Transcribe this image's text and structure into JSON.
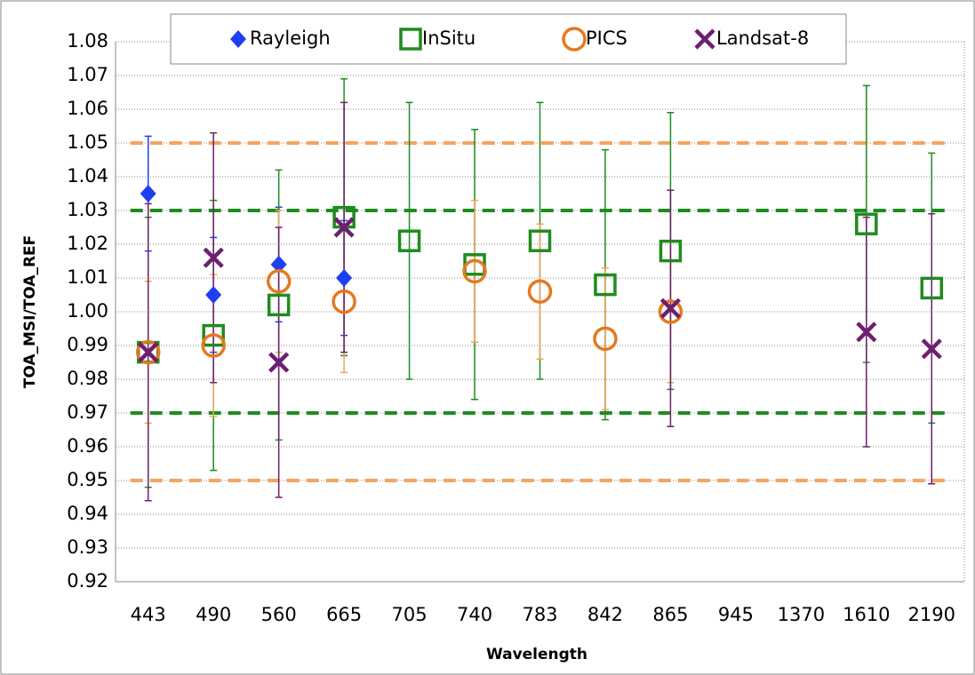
{
  "chart_data": {
    "type": "errorbar-scatter",
    "x_label": "Wavelength",
    "y_label": "TOA_MSI/TOA_REF",
    "categories": [
      "443",
      "490",
      "560",
      "665",
      "705",
      "740",
      "783",
      "842",
      "865",
      "945",
      "1370",
      "1610",
      "2190"
    ],
    "ylim": [
      0.92,
      1.08
    ],
    "yticks": [
      0.92,
      0.93,
      0.94,
      0.95,
      0.96,
      0.97,
      0.98,
      0.99,
      {
        "value": 1,
        "label": "1.00"
      },
      1.01,
      1.02,
      1.03,
      1.04,
      1.05,
      1.06,
      1.07,
      1.08
    ],
    "grid": true,
    "legend": "top",
    "reference_lines": [
      {
        "value": 1.05,
        "color": "#f4a460"
      },
      {
        "value": 0.95,
        "color": "#f4a460"
      },
      {
        "value": 1.03,
        "color": "#1e8c1e"
      },
      {
        "value": 0.97,
        "color": "#1e8c1e"
      }
    ],
    "series": [
      {
        "name": "Rayleigh",
        "marker": "diamond",
        "color": "#1e3ff0",
        "values": [
          1.035,
          1.005,
          1.014,
          1.01,
          null,
          null,
          null,
          null,
          null,
          null,
          null,
          null,
          null
        ],
        "errors": [
          0.017,
          0.017,
          0.017,
          0.017,
          null,
          null,
          null,
          null,
          null,
          null,
          null,
          null,
          null
        ]
      },
      {
        "name": "InSitu",
        "marker": "square",
        "color": "#1e8c1e",
        "values": [
          0.988,
          0.993,
          1.002,
          1.028,
          1.021,
          1.014,
          1.021,
          1.008,
          1.018,
          null,
          null,
          1.026,
          1.007
        ],
        "errors": [
          0.04,
          0.04,
          0.04,
          0.041,
          0.041,
          0.04,
          0.041,
          0.04,
          0.041,
          null,
          null,
          0.041,
          0.04
        ]
      },
      {
        "name": "PICS",
        "marker": "circle",
        "color": "#e5791f",
        "values": [
          0.988,
          0.99,
          1.009,
          1.003,
          null,
          1.012,
          1.006,
          0.992,
          1.0,
          null,
          null,
          null,
          null
        ],
        "errors": [
          0.021,
          0.021,
          0.021,
          0.021,
          null,
          0.021,
          0.02,
          0.021,
          0.021,
          null,
          null,
          null,
          null
        ]
      },
      {
        "name": "Landsat-8",
        "marker": "x",
        "color": "#6e1f6e",
        "values": [
          0.988,
          1.016,
          0.985,
          1.025,
          null,
          null,
          null,
          null,
          1.001,
          null,
          null,
          0.994,
          0.989
        ],
        "errors": [
          0.044,
          0.037,
          0.04,
          0.037,
          null,
          null,
          null,
          null,
          0.035,
          null,
          null,
          0.034,
          0.04
        ]
      }
    ]
  }
}
